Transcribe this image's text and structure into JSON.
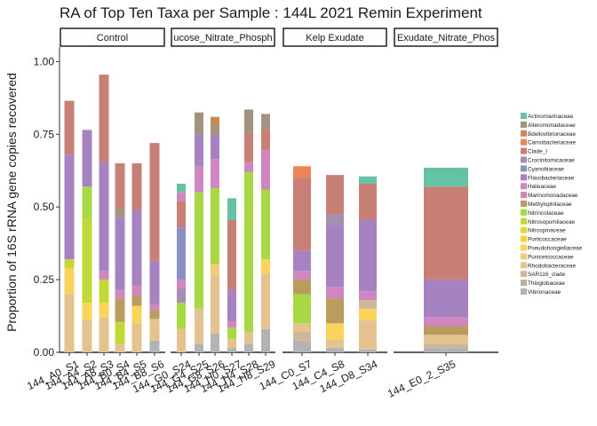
{
  "chart_data": {
    "type": "bar",
    "stacked": true,
    "title": "RA of Top Ten Taxa per Sample : 144L 2021 Remin Experiment",
    "ylabel": "Proportion of 16S rRNA gene copies recovered",
    "xlabel": "",
    "ylim": [
      0,
      1.05
    ],
    "yticks": [
      "0.00",
      "0.25",
      "0.50",
      "0.75",
      "1.00"
    ],
    "grid": false,
    "legend_position": "right",
    "taxa": [
      {
        "name": "Actinomarinaceae",
        "color": "#66c2a5"
      },
      {
        "name": "Alteromonadaceae",
        "color": "#a49281"
      },
      {
        "name": "Bdellovibrionaceae",
        "color": "#c68a5a"
      },
      {
        "name": "Carnobacteriaceae",
        "color": "#ee8559"
      },
      {
        "name": "Clade_I",
        "color": "#c77f76"
      },
      {
        "name": "Crocinitomicaceae",
        "color": "#a58fb0"
      },
      {
        "name": "Cyanobiaceae",
        "color": "#8c91c4"
      },
      {
        "name": "Flavobacteriaceae",
        "color": "#a683c0"
      },
      {
        "name": "Halieaceae",
        "color": "#d087c0"
      },
      {
        "name": "Marinomonadaceae",
        "color": "#d287b3"
      },
      {
        "name": "Methylophilaceae",
        "color": "#ba9c5e"
      },
      {
        "name": "Nitrincolaceae",
        "color": "#a8d843"
      },
      {
        "name": "Nitrosopumilaceae",
        "color": "#c2d836"
      },
      {
        "name": "Nitrospinaceae",
        "color": "#e6d72e"
      },
      {
        "name": "Porticoccaceae",
        "color": "#f8d431"
      },
      {
        "name": "Pseudohongiellaceae",
        "color": "#fbd35a"
      },
      {
        "name": "Puniceicoccaceae",
        "color": "#f0cc78"
      },
      {
        "name": "Rhodobacteraceae",
        "color": "#e4c38f"
      },
      {
        "name": "SAR116_clade",
        "color": "#cdb79b"
      },
      {
        "name": "Thioglobaceae",
        "color": "#b9b0a0"
      },
      {
        "name": "Vibrionaceae",
        "color": "#b3b3b3"
      }
    ],
    "facets": [
      {
        "label": "Control",
        "bars": [
          {
            "label": "144_A0_S1",
            "segments": [
              {
                "taxon": "Rhodobacteraceae",
                "value": 0.2
              },
              {
                "taxon": "Pseudohongiellaceae",
                "value": 0.09
              },
              {
                "taxon": "Nitrosopumilaceae",
                "value": 0.03
              },
              {
                "taxon": "Flavobacteriaceae",
                "value": 0.36
              },
              {
                "taxon": "Clade_I",
                "value": 0.185
              }
            ]
          },
          {
            "label": "144_A4_S2",
            "segments": [
              {
                "taxon": "Rhodobacteraceae",
                "value": 0.11
              },
              {
                "taxon": "Pseudohongiellaceae",
                "value": 0.06
              },
              {
                "taxon": "Nitrosopumilaceae",
                "value": 0.29
              },
              {
                "taxon": "Nitrincolaceae",
                "value": 0.11
              },
              {
                "taxon": "Flavobacteriaceae",
                "value": 0.195
              }
            ]
          },
          {
            "label": "144_A8_S3",
            "segments": [
              {
                "taxon": "Rhodobacteraceae",
                "value": 0.12
              },
              {
                "taxon": "Pseudohongiellaceae",
                "value": 0.05
              },
              {
                "taxon": "Nitrosopumilaceae",
                "value": 0.08
              },
              {
                "taxon": "Halieaceae",
                "value": 0.03
              },
              {
                "taxon": "Flavobacteriaceae",
                "value": 0.375
              },
              {
                "taxon": "Clade_I",
                "value": 0.3
              }
            ]
          },
          {
            "label": "144_B0_S4",
            "segments": [
              {
                "taxon": "Rhodobacteraceae",
                "value": 0.03
              },
              {
                "taxon": "Nitrosopumilaceae",
                "value": 0.075
              },
              {
                "taxon": "Methylophilaceae",
                "value": 0.08
              },
              {
                "taxon": "Halieaceae",
                "value": 0.03
              },
              {
                "taxon": "Flavobacteriaceae",
                "value": 0.25
              },
              {
                "taxon": "Alteromonadaceae",
                "value": 0.03
              },
              {
                "taxon": "Clade_I",
                "value": 0.155
              }
            ]
          },
          {
            "label": "144_B4_S5",
            "segments": [
              {
                "taxon": "Rhodobacteraceae",
                "value": 0.1
              },
              {
                "taxon": "Pseudohongiellaceae",
                "value": 0.06
              },
              {
                "taxon": "Methylophilaceae",
                "value": 0.035
              },
              {
                "taxon": "Halieaceae",
                "value": 0.035
              },
              {
                "taxon": "Flavobacteriaceae",
                "value": 0.26
              },
              {
                "taxon": "Clade_I",
                "value": 0.16
              }
            ]
          },
          {
            "label": "144_B8_S6",
            "segments": [
              {
                "taxon": "Vibrionaceae",
                "value": 0.04
              },
              {
                "taxon": "Rhodobacteraceae",
                "value": 0.075
              },
              {
                "taxon": "Methylophilaceae",
                "value": 0.03
              },
              {
                "taxon": "Halieaceae",
                "value": 0.02
              },
              {
                "taxon": "Flavobacteriaceae",
                "value": 0.15
              },
              {
                "taxon": "Clade_I",
                "value": 0.405
              }
            ]
          }
        ]
      },
      {
        "label": "ucose_Nitrate_Phosph",
        "bars": [
          {
            "label": "144_G0_S24",
            "segments": [
              {
                "taxon": "Rhodobacteraceae",
                "value": 0.08
              },
              {
                "taxon": "Nitrincolaceae",
                "value": 0.09
              },
              {
                "taxon": "Crocinitomicaceae",
                "value": 0.05
              },
              {
                "taxon": "Halieaceae",
                "value": 0.03
              },
              {
                "taxon": "Cyanobiaceae",
                "value": 0.18
              },
              {
                "taxon": "Clade_I",
                "value": 0.09
              },
              {
                "taxon": "Halieaceae",
                "value": 0.03
              },
              {
                "taxon": "Actinomarinaceae",
                "value": 0.03
              }
            ]
          },
          {
            "label": "144_G4_S25",
            "segments": [
              {
                "taxon": "Vibrionaceae",
                "value": 0.03
              },
              {
                "taxon": "Rhodobacteraceae",
                "value": 0.12
              },
              {
                "taxon": "Nitrincolaceae",
                "value": 0.4
              },
              {
                "taxon": "Halieaceae",
                "value": 0.09
              },
              {
                "taxon": "Flavobacteriaceae",
                "value": 0.11
              },
              {
                "taxon": "Alteromonadaceae",
                "value": 0.075
              }
            ]
          },
          {
            "label": "144_G8_S26",
            "segments": [
              {
                "taxon": "Vibrionaceae",
                "value": 0.065
              },
              {
                "taxon": "Rhodobacteraceae",
                "value": 0.2
              },
              {
                "taxon": "Puniceicoccaceae",
                "value": 0.04
              },
              {
                "taxon": "Nitrincolaceae",
                "value": 0.26
              },
              {
                "taxon": "Halieaceae",
                "value": 0.1
              },
              {
                "taxon": "Flavobacteriaceae",
                "value": 0.08
              },
              {
                "taxon": "Alteromonadaceae",
                "value": 0.035
              },
              {
                "taxon": "Bdellovibrionaceae",
                "value": 0.03
              }
            ]
          },
          {
            "label": "144_H0_S27",
            "segments": [
              {
                "taxon": "Vibrionaceae",
                "value": 0.015
              },
              {
                "taxon": "Rhodobacteraceae",
                "value": 0.03
              },
              {
                "taxon": "Nitrincolaceae",
                "value": 0.04
              },
              {
                "taxon": "Halieaceae",
                "value": 0.02
              },
              {
                "taxon": "Flavobacteriaceae",
                "value": 0.11
              },
              {
                "taxon": "Clade_I",
                "value": 0.24
              },
              {
                "taxon": "Actinomarinaceae",
                "value": 0.075
              }
            ]
          },
          {
            "label": "144_H4_S28",
            "segments": [
              {
                "taxon": "Vibrionaceae",
                "value": 0.03
              },
              {
                "taxon": "Rhodobacteraceae",
                "value": 0.04
              },
              {
                "taxon": "Nitrincolaceae",
                "value": 0.55
              },
              {
                "taxon": "Halieaceae",
                "value": 0.035
              },
              {
                "taxon": "Clade_I",
                "value": 0.1
              },
              {
                "taxon": "Alteromonadaceae",
                "value": 0.08
              }
            ]
          },
          {
            "label": "144_H8_S29",
            "segments": [
              {
                "taxon": "Vibrionaceae",
                "value": 0.08
              },
              {
                "taxon": "Rhodobacteraceae",
                "value": 0.19
              },
              {
                "taxon": "Pseudohongiellaceae",
                "value": 0.05
              },
              {
                "taxon": "Nitrincolaceae",
                "value": 0.24
              },
              {
                "taxon": "Halieaceae",
                "value": 0.135
              },
              {
                "taxon": "Clade_I",
                "value": 0.07
              },
              {
                "taxon": "Alteromonadaceae",
                "value": 0.055
              }
            ]
          }
        ]
      },
      {
        "label": "Kelp Exudate",
        "bars": [
          {
            "label": "144_C0_S7",
            "segments": [
              {
                "taxon": "Vibrionaceae",
                "value": 0.04
              },
              {
                "taxon": "SAR116_clade",
                "value": 0.03
              },
              {
                "taxon": "Rhodobacteraceae",
                "value": 0.03
              },
              {
                "taxon": "Nitrincolaceae",
                "value": 0.1
              },
              {
                "taxon": "Methylophilaceae",
                "value": 0.05
              },
              {
                "taxon": "Halieaceae",
                "value": 0.03
              },
              {
                "taxon": "Flavobacteriaceae",
                "value": 0.07
              },
              {
                "taxon": "Clade_I",
                "value": 0.25
              },
              {
                "taxon": "Carnobacteriaceae",
                "value": 0.04
              }
            ]
          },
          {
            "label": "144_C4_S8",
            "segments": [
              {
                "taxon": "Vibrionaceae",
                "value": 0.015
              },
              {
                "taxon": "Rhodobacteraceae",
                "value": 0.03
              },
              {
                "taxon": "Pseudohongiellaceae",
                "value": 0.055
              },
              {
                "taxon": "Methylophilaceae",
                "value": 0.085
              },
              {
                "taxon": "Halieaceae",
                "value": 0.04
              },
              {
                "taxon": "Flavobacteriaceae",
                "value": 0.21
              },
              {
                "taxon": "Crocinitomicaceae",
                "value": 0.04
              },
              {
                "taxon": "Clade_I",
                "value": 0.135
              }
            ]
          },
          {
            "label": "144_D8_S34",
            "segments": [
              {
                "taxon": "Vibrionaceae",
                "value": 0.01
              },
              {
                "taxon": "Rhodobacteraceae",
                "value": 0.1
              },
              {
                "taxon": "Pseudohongiellaceae",
                "value": 0.04
              },
              {
                "taxon": "SAR116_clade",
                "value": 0.03
              },
              {
                "taxon": "Halieaceae",
                "value": 0.03
              },
              {
                "taxon": "Flavobacteriaceae",
                "value": 0.245
              },
              {
                "taxon": "Clade_I",
                "value": 0.125
              },
              {
                "taxon": "Actinomarinaceae",
                "value": 0.025
              }
            ]
          }
        ]
      },
      {
        "label": "Exudate_Nitrate_Phos",
        "bars": [
          {
            "label": "144_E0_2_S35",
            "segments": [
              {
                "taxon": "Vibrionaceae",
                "value": 0.015
              },
              {
                "taxon": "SAR116_clade",
                "value": 0.015
              },
              {
                "taxon": "Rhodobacteraceae",
                "value": 0.03
              },
              {
                "taxon": "Methylophilaceae",
                "value": 0.03
              },
              {
                "taxon": "Halieaceae",
                "value": 0.03
              },
              {
                "taxon": "Flavobacteriaceae",
                "value": 0.13
              },
              {
                "taxon": "Clade_I",
                "value": 0.32
              },
              {
                "taxon": "Actinomarinaceae",
                "value": 0.065
              }
            ]
          }
        ]
      }
    ]
  }
}
